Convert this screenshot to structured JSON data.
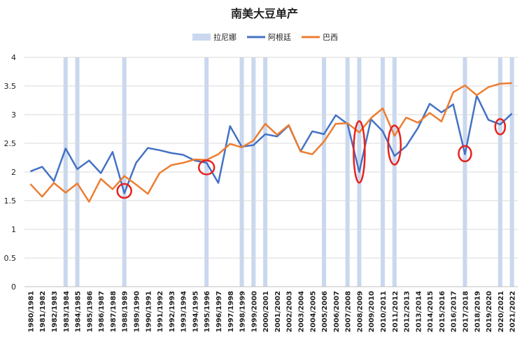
{
  "chart_data": {
    "type": "line",
    "title": "南美大豆单产",
    "ylim": [
      0,
      4
    ],
    "yticks": [
      0,
      0.5,
      1,
      1.5,
      2,
      2.5,
      3,
      3.5,
      4
    ],
    "ytick_labels": [
      "0",
      "0.5",
      "1",
      "1.5",
      "2",
      "2.5",
      "3",
      "3.5",
      "4"
    ],
    "legend_position": "top",
    "categories": [
      "1980/1981",
      "1981/1982",
      "1982/1983",
      "1983/1984",
      "1984/1985",
      "1985/1986",
      "1986/1987",
      "1987/1988",
      "1988/1989",
      "1989/1990",
      "1990/1991",
      "1991/1992",
      "1992/1993",
      "1993/1994",
      "1994/1995",
      "1995/1996",
      "1996/1997",
      "1997/1998",
      "1998/1999",
      "1999/2000",
      "2000/2001",
      "2001/2002",
      "2002/2003",
      "2003/2004",
      "2004/2005",
      "2005/2006",
      "2006/2007",
      "2007/2008",
      "2008/2009",
      "2009/2010",
      "2010/2011",
      "2011/2012",
      "2012/2013",
      "2013/2014",
      "2014/2015",
      "2015/2016",
      "2016/2017",
      "2017/2018",
      "2018/2019",
      "2019/2020",
      "2020/2021",
      "2021/2022"
    ],
    "series": [
      {
        "name": "拉尼娜",
        "type": "band",
        "color": "#c9d8ee",
        "categories": [
          "1983/1984",
          "1984/1985",
          "1988/1989",
          "1995/1996",
          "1998/1999",
          "1999/2000",
          "2000/2001",
          "2005/2006",
          "2007/2008",
          "2008/2009",
          "2010/2011",
          "2011/2012",
          "2017/2018",
          "2020/2021",
          "2021/2022"
        ]
      },
      {
        "name": "阿根廷",
        "type": "line",
        "color": "#4472c4",
        "values": [
          2.01,
          2.09,
          1.84,
          2.41,
          2.05,
          2.2,
          1.98,
          2.35,
          1.63,
          2.16,
          2.42,
          2.38,
          2.33,
          2.3,
          2.2,
          2.16,
          1.81,
          2.8,
          2.44,
          2.47,
          2.66,
          2.62,
          2.81,
          2.36,
          2.71,
          2.66,
          2.99,
          2.84,
          2.0,
          2.92,
          2.71,
          2.28,
          2.45,
          2.77,
          3.19,
          3.04,
          3.18,
          2.31,
          3.33,
          2.91,
          2.83,
          3.02
        ]
      },
      {
        "name": "巴西",
        "type": "line",
        "color": "#ed7d31",
        "values": [
          1.79,
          1.57,
          1.81,
          1.64,
          1.8,
          1.48,
          1.88,
          1.7,
          1.93,
          1.78,
          1.62,
          1.98,
          2.12,
          2.16,
          2.22,
          2.21,
          2.31,
          2.49,
          2.43,
          2.55,
          2.84,
          2.65,
          2.82,
          2.36,
          2.31,
          2.53,
          2.84,
          2.85,
          2.69,
          2.94,
          3.11,
          2.63,
          2.95,
          2.86,
          3.03,
          2.88,
          3.39,
          3.51,
          3.34,
          3.48,
          3.54,
          3.55
        ]
      }
    ],
    "highlight_color": "#e8211d",
    "highlights": [
      {
        "category": "1988/1989",
        "value": 1.67,
        "rx": 10,
        "ry": 10
      },
      {
        "category": "1995/1996",
        "value": 2.08,
        "rx": 11,
        "ry": 10
      },
      {
        "category": "2008/2009",
        "value": 2.35,
        "rx": 8,
        "ry": 44
      },
      {
        "category": "2011/2012",
        "value": 2.47,
        "rx": 9,
        "ry": 28
      },
      {
        "category": "2017/2018",
        "value": 2.32,
        "rx": 9,
        "ry": 11
      },
      {
        "category": "2020/2021",
        "value": 2.79,
        "rx": 7,
        "ry": 11
      }
    ]
  }
}
